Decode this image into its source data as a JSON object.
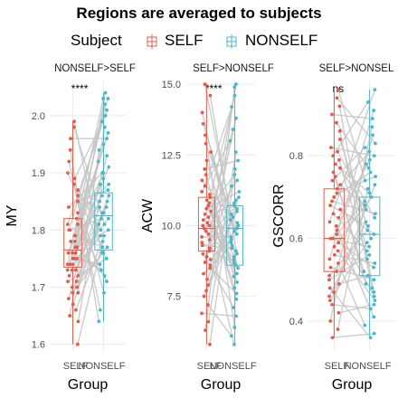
{
  "chart_data": {
    "type": "box",
    "title": "Regions are averaged to subjects",
    "legend": {
      "title": "Subject",
      "position": "top",
      "entries": [
        {
          "label": "SELF",
          "color": "#e15c4d"
        },
        {
          "label": "NONSELF",
          "color": "#4bb7c7"
        }
      ]
    },
    "overlays": [
      "jittered points per subject",
      "grey paired lines SELF to NONSELF"
    ],
    "line_color": "#c4c4c4",
    "panels": [
      {
        "strip": "NONSELF>SELF",
        "significance": "****",
        "ylabel": "MY",
        "xlabel": "Group",
        "categories": [
          "SELF",
          "NONSELF"
        ],
        "ylim": [
          1.59,
          2.06
        ],
        "yticks": [
          "1.6",
          "1.7",
          "1.8",
          "1.9",
          "2.0"
        ],
        "boxes": [
          {
            "group": "SELF",
            "q1": 1.735,
            "median": 1.765,
            "q3": 1.82
          },
          {
            "group": "NONSELF",
            "q1": 1.765,
            "median": 1.825,
            "q3": 1.865
          }
        ],
        "points": {
          "SELF": [
            1.6,
            1.64,
            1.65,
            1.66,
            1.67,
            1.68,
            1.69,
            1.69,
            1.7,
            1.7,
            1.71,
            1.71,
            1.72,
            1.72,
            1.73,
            1.73,
            1.73,
            1.74,
            1.74,
            1.74,
            1.75,
            1.75,
            1.75,
            1.76,
            1.76,
            1.76,
            1.77,
            1.77,
            1.77,
            1.78,
            1.78,
            1.79,
            1.79,
            1.8,
            1.8,
            1.81,
            1.81,
            1.82,
            1.83,
            1.84,
            1.85,
            1.86,
            1.87,
            1.88,
            1.89,
            1.9,
            1.92,
            1.94,
            1.96,
            1.98,
            1.99
          ],
          "NONSELF": [
            1.64,
            1.66,
            1.69,
            1.71,
            1.72,
            1.73,
            1.74,
            1.75,
            1.75,
            1.76,
            1.76,
            1.77,
            1.77,
            1.78,
            1.79,
            1.79,
            1.8,
            1.8,
            1.81,
            1.81,
            1.82,
            1.82,
            1.83,
            1.83,
            1.84,
            1.84,
            1.85,
            1.85,
            1.86,
            1.86,
            1.87,
            1.88,
            1.88,
            1.89,
            1.9,
            1.9,
            1.91,
            1.92,
            1.93,
            1.94,
            1.95,
            1.96,
            1.97,
            1.98,
            1.99,
            2.0,
            2.01,
            2.02,
            2.03,
            2.03,
            2.04
          ]
        }
      },
      {
        "strip": "SELF>NONSELF",
        "significance": "****",
        "ylabel": "ACW",
        "xlabel": "Group",
        "categories": [
          "SELF",
          "NONSELF"
        ],
        "ylim": [
          5.6,
          15.1
        ],
        "yticks": [
          "7.5",
          "10.0",
          "12.5",
          "15.0"
        ],
        "boxes": [
          {
            "group": "SELF",
            "q1": 9.1,
            "median": 9.9,
            "q3": 11.0
          },
          {
            "group": "NONSELF",
            "q1": 8.6,
            "median": 9.9,
            "q3": 10.7
          }
        ],
        "points": {
          "SELF": [
            5.8,
            6.3,
            6.6,
            6.9,
            7.2,
            7.5,
            7.7,
            7.9,
            8.1,
            8.3,
            8.5,
            8.6,
            8.7,
            8.8,
            8.9,
            9.0,
            9.1,
            9.2,
            9.3,
            9.4,
            9.5,
            9.6,
            9.7,
            9.8,
            9.9,
            10.0,
            10.0,
            10.1,
            10.2,
            10.3,
            10.4,
            10.5,
            10.6,
            10.7,
            10.8,
            10.9,
            11.0,
            11.1,
            11.2,
            11.4,
            11.6,
            11.8,
            12.0,
            12.3,
            12.6,
            12.9,
            13.2,
            13.6,
            14.0,
            14.6,
            15.0
          ],
          "NONSELF": [
            5.8,
            6.1,
            6.4,
            6.8,
            7.1,
            7.4,
            7.6,
            7.8,
            8.0,
            8.2,
            8.3,
            8.5,
            8.6,
            8.7,
            8.8,
            8.9,
            9.0,
            9.1,
            9.2,
            9.3,
            9.4,
            9.5,
            9.6,
            9.7,
            9.8,
            9.9,
            10.0,
            10.1,
            10.2,
            10.3,
            10.4,
            10.5,
            10.6,
            10.7,
            10.8,
            10.9,
            11.0,
            11.2,
            11.4,
            11.6,
            11.8,
            12.0,
            12.3,
            12.6,
            13.0,
            13.4,
            13.8,
            14.2,
            14.6,
            14.9,
            15.0
          ]
        }
      },
      {
        "strip": "SELF>NONSEL",
        "significance": "ns",
        "ylabel": "GSCORR",
        "xlabel": "Group",
        "categories": [
          "SELF",
          "NONSELF"
        ],
        "ylim": [
          0.33,
          0.98
        ],
        "yticks": [
          "0.4",
          "0.6",
          "0.8"
        ],
        "boxes": [
          {
            "group": "SELF",
            "q1": 0.52,
            "median": 0.6,
            "q3": 0.72
          },
          {
            "group": "NONSELF",
            "q1": 0.51,
            "median": 0.61,
            "q3": 0.7
          }
        ],
        "points": {
          "SELF": [
            0.36,
            0.38,
            0.4,
            0.42,
            0.44,
            0.45,
            0.46,
            0.47,
            0.48,
            0.49,
            0.5,
            0.51,
            0.52,
            0.53,
            0.54,
            0.55,
            0.56,
            0.57,
            0.58,
            0.59,
            0.6,
            0.6,
            0.61,
            0.62,
            0.63,
            0.64,
            0.65,
            0.66,
            0.67,
            0.68,
            0.69,
            0.7,
            0.71,
            0.72,
            0.73,
            0.74,
            0.75,
            0.76,
            0.77,
            0.78,
            0.79,
            0.8,
            0.81,
            0.82,
            0.84,
            0.86,
            0.88,
            0.9,
            0.92,
            0.94,
            0.96
          ],
          "NONSELF": [
            0.36,
            0.37,
            0.39,
            0.41,
            0.43,
            0.44,
            0.45,
            0.46,
            0.47,
            0.48,
            0.49,
            0.5,
            0.51,
            0.52,
            0.53,
            0.54,
            0.55,
            0.56,
            0.57,
            0.58,
            0.59,
            0.6,
            0.61,
            0.62,
            0.63,
            0.64,
            0.65,
            0.66,
            0.67,
            0.68,
            0.69,
            0.7,
            0.71,
            0.72,
            0.73,
            0.74,
            0.75,
            0.76,
            0.77,
            0.78,
            0.79,
            0.8,
            0.81,
            0.82,
            0.83,
            0.85,
            0.87,
            0.89,
            0.91,
            0.93,
            0.96
          ]
        }
      }
    ]
  }
}
